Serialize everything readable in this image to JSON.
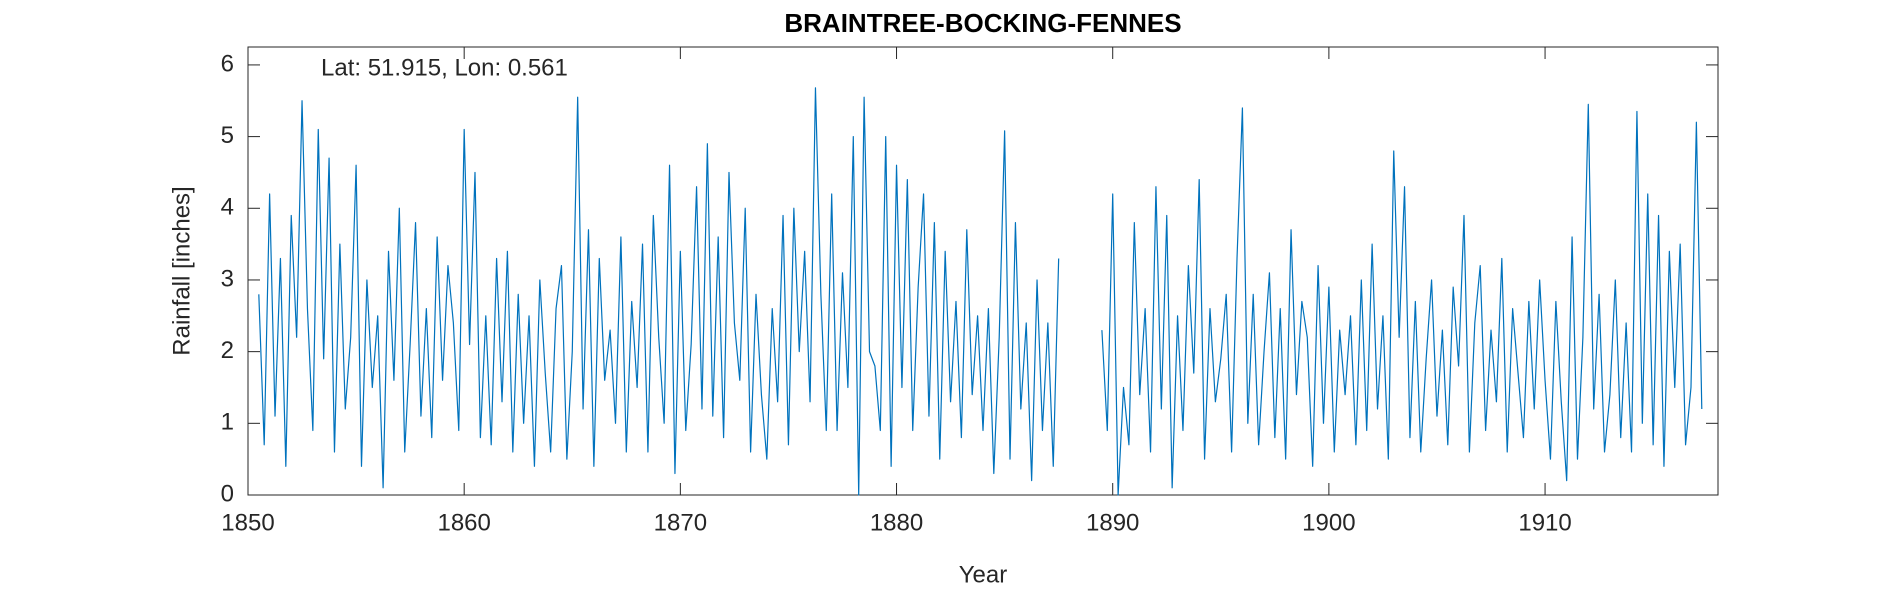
{
  "chart_data": {
    "type": "line",
    "title": "BRAINTREE-BOCKING-FENNES",
    "annotation": "Lat: 51.915, Lon: 0.561",
    "x_label": "Year",
    "y_label": "Rainfall [inches]",
    "xlim": [
      1850,
      1918
    ],
    "ylim": [
      0,
      6.25
    ],
    "xticks": [
      1850,
      1860,
      1870,
      1880,
      1890,
      1900,
      1910
    ],
    "yticks": [
      0,
      1,
      2,
      3,
      4,
      5,
      6
    ],
    "grid": false,
    "x": [
      1850.5,
      1850.75,
      1851,
      1851.25,
      1851.5,
      1851.75,
      1852,
      1852.25,
      1852.5,
      1852.75,
      1853,
      1853.25,
      1853.5,
      1853.75,
      1854,
      1854.25,
      1854.5,
      1854.75,
      1855,
      1855.25,
      1855.5,
      1855.75,
      1856,
      1856.25,
      1856.5,
      1856.75,
      1857,
      1857.25,
      1857.5,
      1857.75,
      1858,
      1858.25,
      1858.5,
      1858.75,
      1859,
      1859.25,
      1859.5,
      1859.75,
      1860,
      1860.25,
      1860.5,
      1860.75,
      1861,
      1861.25,
      1861.5,
      1861.75,
      1862,
      1862.25,
      1862.5,
      1862.75,
      1863,
      1863.25,
      1863.5,
      1863.75,
      1864,
      1864.25,
      1864.5,
      1864.75,
      1865,
      1865.25,
      1865.5,
      1865.75,
      1866,
      1866.25,
      1866.5,
      1866.75,
      1867,
      1867.25,
      1867.5,
      1867.75,
      1868,
      1868.25,
      1868.5,
      1868.75,
      1869,
      1869.25,
      1869.5,
      1869.75,
      1870,
      1870.25,
      1870.5,
      1870.75,
      1871,
      1871.25,
      1871.5,
      1871.75,
      1872,
      1872.25,
      1872.5,
      1872.75,
      1873,
      1873.25,
      1873.5,
      1873.75,
      1874,
      1874.25,
      1874.5,
      1874.75,
      1875,
      1875.25,
      1875.5,
      1875.75,
      1876,
      1876.25,
      1876.5,
      1876.75,
      1877,
      1877.25,
      1877.5,
      1877.75,
      1878,
      1878.25,
      1878.5,
      1878.75,
      1879,
      1879.25,
      1879.5,
      1879.75,
      1880,
      1880.25,
      1880.5,
      1880.75,
      1881,
      1881.25,
      1881.5,
      1881.75,
      1882,
      1882.25,
      1882.5,
      1882.75,
      1883,
      1883.25,
      1883.5,
      1883.75,
      1884,
      1884.25,
      1884.5,
      1884.75,
      1885,
      1885.25,
      1885.5,
      1885.75,
      1886,
      1886.25,
      1886.5,
      1886.75,
      1887,
      1887.25,
      1887.5,
      1888.5,
      1889.5,
      1889.75,
      1890,
      1890.25,
      1890.5,
      1890.75,
      1891,
      1891.25,
      1891.5,
      1891.75,
      1892,
      1892.25,
      1892.5,
      1892.75,
      1893,
      1893.25,
      1893.5,
      1893.75,
      1894,
      1894.25,
      1894.5,
      1894.75,
      1895,
      1895.25,
      1895.5,
      1895.75,
      1896,
      1896.25,
      1896.5,
      1896.75,
      1897,
      1897.25,
      1897.5,
      1897.75,
      1898,
      1898.25,
      1898.5,
      1898.75,
      1899,
      1899.25,
      1899.5,
      1899.75,
      1900,
      1900.25,
      1900.5,
      1900.75,
      1901,
      1901.25,
      1901.5,
      1901.75,
      1902,
      1902.25,
      1902.5,
      1902.75,
      1903,
      1903.25,
      1903.5,
      1903.75,
      1904,
      1904.25,
      1904.5,
      1904.75,
      1905,
      1905.25,
      1905.5,
      1905.75,
      1906,
      1906.25,
      1906.5,
      1906.75,
      1907,
      1907.25,
      1907.5,
      1907.75,
      1908,
      1908.25,
      1908.5,
      1908.75,
      1909,
      1909.25,
      1909.5,
      1909.75,
      1910,
      1910.25,
      1910.5,
      1910.75,
      1911,
      1911.25,
      1911.5,
      1911.75,
      1912,
      1912.25,
      1912.5,
      1912.75,
      1913,
      1913.25,
      1913.5,
      1913.75,
      1914,
      1914.25,
      1914.5,
      1914.75,
      1915,
      1915.25,
      1915.5,
      1915.75,
      1916,
      1916.25,
      1916.5,
      1916.75,
      1917,
      1917.25
    ],
    "series": [
      {
        "color": "#0072bd",
        "values": [
          2.8,
          0.7,
          4.2,
          1.1,
          3.3,
          0.4,
          3.9,
          2.2,
          5.5,
          2.6,
          0.9,
          5.1,
          1.9,
          4.7,
          0.6,
          3.5,
          1.2,
          2.2,
          4.6,
          0.4,
          3.0,
          1.5,
          2.5,
          0.1,
          3.4,
          1.6,
          4.0,
          0.6,
          2.1,
          3.8,
          1.1,
          2.6,
          0.8,
          3.6,
          1.6,
          3.2,
          2.4,
          0.9,
          5.1,
          2.1,
          4.5,
          0.8,
          2.5,
          0.7,
          3.3,
          1.3,
          3.4,
          0.6,
          2.8,
          1.0,
          2.5,
          0.4,
          3.0,
          1.7,
          0.6,
          2.6,
          3.2,
          0.5,
          2.0,
          5.55,
          1.2,
          3.7,
          0.4,
          3.3,
          1.6,
          2.3,
          1.0,
          3.6,
          0.6,
          2.7,
          1.5,
          3.5,
          0.6,
          3.9,
          2.2,
          1.0,
          4.6,
          0.3,
          3.4,
          0.9,
          2.1,
          4.3,
          1.2,
          4.9,
          1.1,
          3.6,
          0.8,
          4.5,
          2.4,
          1.6,
          4.0,
          0.6,
          2.8,
          1.4,
          0.5,
          2.6,
          1.3,
          3.9,
          0.7,
          4.0,
          2.0,
          3.4,
          1.3,
          5.68,
          2.8,
          0.9,
          4.2,
          0.9,
          3.1,
          1.5,
          5.0,
          0.0,
          5.55,
          2.0,
          1.8,
          0.9,
          5.0,
          0.4,
          4.6,
          1.5,
          4.4,
          0.9,
          2.9,
          4.2,
          1.1,
          3.8,
          0.5,
          3.4,
          1.3,
          2.7,
          0.8,
          3.7,
          1.4,
          2.5,
          0.9,
          2.6,
          0.3,
          2.2,
          5.08,
          0.5,
          3.8,
          1.2,
          2.4,
          0.2,
          3.0,
          0.9,
          2.4,
          0.4,
          3.3,
          null,
          2.3,
          0.9,
          4.2,
          0.0,
          1.5,
          0.7,
          3.8,
          1.4,
          2.6,
          0.6,
          4.3,
          1.2,
          3.9,
          0.1,
          2.5,
          0.9,
          3.2,
          1.7,
          4.4,
          0.5,
          2.6,
          1.3,
          1.9,
          2.8,
          0.6,
          3.3,
          5.4,
          1.0,
          2.8,
          0.7,
          2.0,
          3.1,
          0.8,
          2.6,
          0.5,
          3.7,
          1.4,
          2.7,
          2.2,
          0.4,
          3.2,
          1.0,
          2.9,
          0.6,
          2.3,
          1.4,
          2.5,
          0.7,
          3.0,
          0.9,
          3.5,
          1.2,
          2.5,
          0.5,
          4.8,
          2.2,
          4.3,
          0.8,
          2.7,
          0.6,
          1.9,
          3.0,
          1.1,
          2.3,
          0.7,
          2.9,
          1.8,
          3.9,
          0.6,
          2.4,
          3.2,
          0.9,
          2.3,
          1.3,
          3.3,
          0.6,
          2.6,
          1.7,
          0.8,
          2.7,
          1.2,
          3.0,
          1.6,
          0.5,
          2.7,
          1.3,
          0.2,
          3.6,
          0.5,
          2.2,
          5.45,
          1.2,
          2.8,
          0.6,
          1.4,
          3.0,
          0.8,
          2.4,
          0.6,
          5.35,
          1.0,
          4.2,
          0.7,
          3.9,
          0.4,
          3.4,
          1.5,
          3.5,
          0.7,
          1.5,
          5.2,
          1.2
        ]
      }
    ]
  }
}
